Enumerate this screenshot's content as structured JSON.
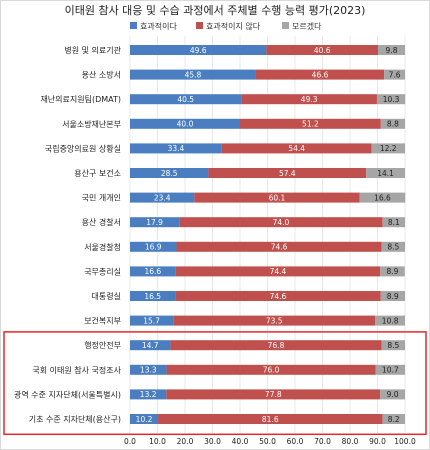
{
  "colors": {
    "effective": "#4a7ec1",
    "not_effective": "#c0504d",
    "unknown": "#a6a6a6",
    "highlight_box": "#e8262b"
  },
  "chart_data": {
    "type": "bar",
    "orientation": "horizontal",
    "stacked": true,
    "title": "이태원 참사 대응 및 수습 과정에서 주체별 수행 능력 평가(2023)",
    "xlim": [
      0,
      100
    ],
    "xticks": [
      "0.0",
      "10.0",
      "20.0",
      "30.0",
      "40.0",
      "50.0",
      "60.0",
      "70.0",
      "80.0",
      "90.0",
      "100.0"
    ],
    "legend_position": "top",
    "categories": [
      "병원 및 의료기관",
      "용산 소방서",
      "재난의료지원팀(DMAT)",
      "서울소방재난본부",
      "국립중앙의료원 상황실",
      "용산구 보건소",
      "국민 개개인",
      "용산 경찰서",
      "서울경찰청",
      "국무총리실",
      "대통령실",
      "보건복지부",
      "행정안전부",
      "국회 이태원 참사 국정조사",
      "광역 수준 지자단체(서울특별시)",
      "기초 수준 지자단체(용산구)"
    ],
    "series": [
      {
        "name": "효과적이다",
        "values": [
          49.6,
          45.8,
          40.5,
          40.0,
          33.4,
          28.5,
          23.4,
          17.9,
          16.9,
          16.6,
          16.5,
          15.7,
          14.7,
          13.3,
          13.2,
          10.2
        ]
      },
      {
        "name": "효과적이지 않다",
        "values": [
          40.6,
          46.6,
          49.3,
          51.2,
          54.4,
          57.4,
          60.1,
          74.0,
          74.6,
          74.4,
          74.6,
          73.5,
          76.8,
          76.0,
          77.8,
          81.6
        ]
      },
      {
        "name": "모르겠다",
        "values": [
          9.8,
          7.6,
          10.3,
          8.8,
          12.2,
          14.1,
          16.6,
          8.1,
          8.5,
          8.9,
          8.9,
          10.8,
          8.5,
          10.7,
          9.0,
          8.2
        ]
      }
    ],
    "highlighted_categories": [
      "행정안전부",
      "국회 이태원 참사 국정조사",
      "광역 수준 지자단체(서울특별시)",
      "기초 수준 지자단체(용산구)"
    ]
  }
}
